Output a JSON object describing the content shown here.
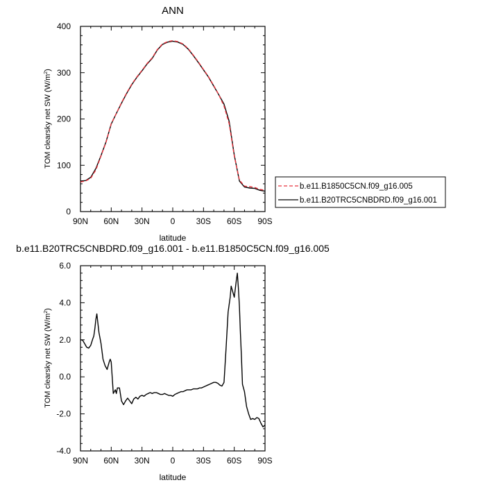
{
  "chart_data": [
    {
      "type": "line",
      "title": "ANN",
      "xlabel": "latitude",
      "ylabel": "TOM clearsky net SW (W/m",
      "ylabel_sup": "2",
      "ylabel_close": ")",
      "xlim": [
        90,
        -90
      ],
      "ylim": [
        0,
        400
      ],
      "x_ticks": [
        90,
        60,
        30,
        0,
        -30,
        -60,
        -90
      ],
      "x_tick_labels": [
        "90N",
        "60N",
        "30N",
        "0",
        "30S",
        "60S",
        "90S"
      ],
      "y_ticks": [
        0,
        100,
        200,
        300,
        400
      ],
      "y_tick_labels": [
        "0",
        "100",
        "200",
        "300",
        "400"
      ],
      "legend_placement": "right",
      "x": [
        90,
        85,
        80,
        75,
        70,
        65,
        60,
        55,
        50,
        45,
        40,
        35,
        30,
        25,
        20,
        15,
        10,
        5,
        0,
        -5,
        -10,
        -15,
        -20,
        -25,
        -30,
        -35,
        -40,
        -45,
        -50,
        -55,
        -60,
        -65,
        -70,
        -75,
        -80,
        -85,
        -90
      ],
      "series": [
        {
          "name": "b.e11.B1850C5CN.f09_g16.005",
          "color": "#e8323c",
          "dash": "dashed",
          "values": [
            64,
            66,
            72,
            90,
            120,
            150,
            190,
            212,
            235,
            256,
            275,
            291,
            305,
            320,
            332,
            350,
            362,
            367,
            369,
            367,
            362,
            352,
            338,
            323,
            307,
            291,
            272,
            252,
            228,
            190,
            120,
            68,
            55,
            54,
            52,
            48,
            46
          ]
        },
        {
          "name": "b.e11.B20TRC5CNBDRD.f09_g16.001",
          "color": "#000000",
          "dash": "solid",
          "values": [
            66,
            67,
            74,
            93,
            121,
            151,
            189,
            212,
            234,
            255,
            274,
            290,
            304,
            319,
            331,
            349,
            361,
            366,
            368,
            366,
            361,
            351,
            337,
            322,
            306,
            290,
            271,
            252,
            232,
            195,
            122,
            66,
            53,
            51,
            50,
            46,
            44
          ]
        }
      ]
    },
    {
      "type": "line",
      "title": "b.e11.B20TRC5CNBDRD.f09_g16.001 - b.e11.B1850C5CN.f09_g16.005",
      "xlabel": "latitude",
      "ylabel": "TOM clearsky net SW (W/m",
      "ylabel_sup": "2",
      "ylabel_close": ")",
      "xlim": [
        90,
        -90
      ],
      "ylim": [
        -4,
        6
      ],
      "x_ticks": [
        90,
        60,
        30,
        0,
        -30,
        -60,
        -90
      ],
      "x_tick_labels": [
        "90N",
        "60N",
        "30N",
        "0",
        "30S",
        "60S",
        "90S"
      ],
      "y_ticks": [
        -4,
        -2,
        0,
        2,
        4,
        6
      ],
      "y_tick_labels": [
        "-4.0",
        "-2.0",
        "0.0",
        "2.0",
        "4.0",
        "6.0"
      ],
      "x": [
        90,
        88,
        86,
        84,
        82,
        80,
        78,
        77,
        76,
        75,
        74,
        73,
        72,
        70,
        68,
        66,
        64,
        62,
        61,
        60,
        58,
        56,
        55,
        54,
        52,
        50,
        48,
        46,
        44,
        42,
        40,
        38,
        36,
        34,
        32,
        30,
        28,
        26,
        24,
        22,
        20,
        18,
        16,
        14,
        12,
        10,
        8,
        6,
        4,
        2,
        0,
        -2,
        -4,
        -6,
        -8,
        -10,
        -12,
        -14,
        -16,
        -18,
        -20,
        -22,
        -24,
        -26,
        -28,
        -30,
        -32,
        -34,
        -36,
        -38,
        -40,
        -42,
        -44,
        -46,
        -48,
        -50,
        -52,
        -54,
        -56,
        -57,
        -58,
        -60,
        -62,
        -63,
        -64,
        -65,
        -66,
        -67,
        -68,
        -70,
        -72,
        -74,
        -76,
        -78,
        -80,
        -82,
        -84,
        -86,
        -88,
        -90
      ],
      "series": [
        {
          "name": "",
          "color": "#000000",
          "dash": "solid",
          "values": [
            2.0,
            1.98,
            1.8,
            1.6,
            1.55,
            1.7,
            2.05,
            2.2,
            2.6,
            3.1,
            3.4,
            2.9,
            2.4,
            1.8,
            0.95,
            0.6,
            0.4,
            0.8,
            0.95,
            0.8,
            -0.9,
            -0.7,
            -0.9,
            -0.6,
            -0.6,
            -1.3,
            -1.5,
            -1.3,
            -1.15,
            -1.3,
            -1.45,
            -1.2,
            -1.1,
            -1.2,
            -1.05,
            -1.0,
            -1.05,
            -0.95,
            -0.9,
            -0.85,
            -0.9,
            -0.85,
            -0.85,
            -0.9,
            -0.95,
            -0.95,
            -0.9,
            -0.95,
            -1.0,
            -1.0,
            -1.05,
            -0.95,
            -0.9,
            -0.85,
            -0.8,
            -0.8,
            -0.75,
            -0.7,
            -0.7,
            -0.7,
            -0.65,
            -0.65,
            -0.65,
            -0.6,
            -0.6,
            -0.55,
            -0.5,
            -0.45,
            -0.4,
            -0.35,
            -0.3,
            -0.3,
            -0.35,
            -0.45,
            -0.5,
            -0.3,
            1.5,
            3.5,
            4.3,
            4.9,
            4.7,
            4.3,
            5.2,
            5.6,
            4.8,
            3.8,
            2.4,
            1.1,
            -0.4,
            -0.8,
            -1.6,
            -2.0,
            -2.3,
            -2.25,
            -2.3,
            -2.2,
            -2.25,
            -2.5,
            -2.7,
            -2.6
          ]
        }
      ]
    }
  ]
}
